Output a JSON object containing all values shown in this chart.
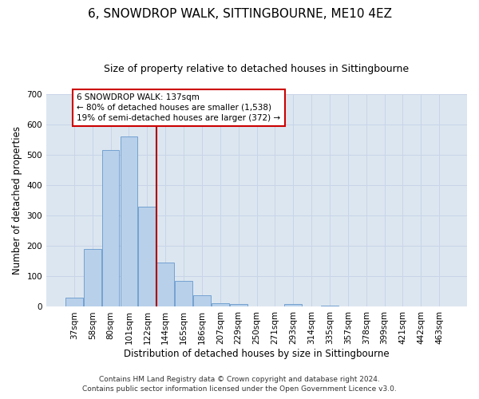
{
  "title": "6, SNOWDROP WALK, SITTINGBOURNE, ME10 4EZ",
  "subtitle": "Size of property relative to detached houses in Sittingbourne",
  "xlabel": "Distribution of detached houses by size in Sittingbourne",
  "ylabel": "Number of detached properties",
  "categories": [
    "37sqm",
    "58sqm",
    "80sqm",
    "101sqm",
    "122sqm",
    "144sqm",
    "165sqm",
    "186sqm",
    "207sqm",
    "229sqm",
    "250sqm",
    "271sqm",
    "293sqm",
    "314sqm",
    "335sqm",
    "357sqm",
    "378sqm",
    "399sqm",
    "421sqm",
    "442sqm",
    "463sqm"
  ],
  "values": [
    30,
    190,
    515,
    560,
    330,
    145,
    85,
    38,
    12,
    8,
    0,
    0,
    10,
    0,
    5,
    0,
    0,
    0,
    0,
    0,
    0
  ],
  "bar_color": "#b8d0ea",
  "bar_edge_color": "#6699cc",
  "vline_x": 4.5,
  "vline_color": "#aa0000",
  "annotation_text": "6 SNOWDROP WALK: 137sqm\n← 80% of detached houses are smaller (1,538)\n19% of semi-detached houses are larger (372) →",
  "annotation_box_color": "#ffffff",
  "annotation_box_edge": "#cc0000",
  "ylim": [
    0,
    700
  ],
  "yticks": [
    0,
    100,
    200,
    300,
    400,
    500,
    600,
    700
  ],
  "grid_color": "#c8d4e8",
  "bg_color": "#dce6f0",
  "footer_line1": "Contains HM Land Registry data © Crown copyright and database right 2024.",
  "footer_line2": "Contains public sector information licensed under the Open Government Licence v3.0.",
  "title_fontsize": 11,
  "subtitle_fontsize": 9,
  "xlabel_fontsize": 8.5,
  "ylabel_fontsize": 8.5,
  "tick_fontsize": 7.5,
  "annotation_fontsize": 7.5,
  "footer_fontsize": 6.5
}
